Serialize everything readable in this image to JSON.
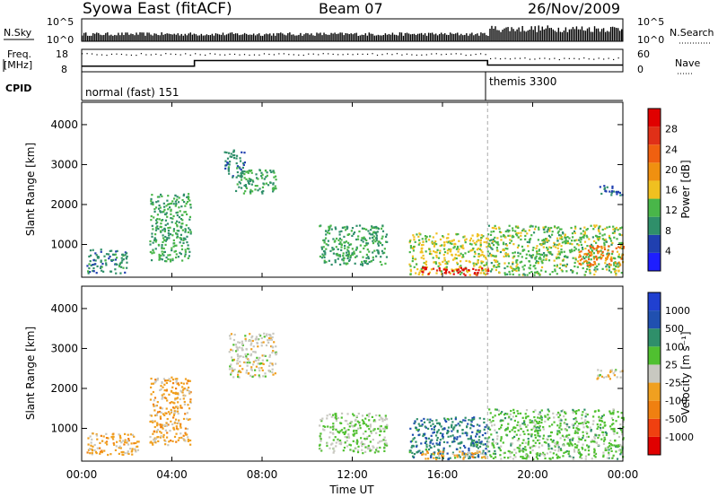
{
  "header": {
    "title": "Syowa East (fitACF)",
    "beam": "Beam 07",
    "date": "26/Nov/2009"
  },
  "top_panels": {
    "nsky_label": "N.Sky",
    "nsky_ticks": [
      "10^5",
      "10^0"
    ],
    "nsearch_label": "N.Search",
    "nsearch_ticks": [
      "10^5",
      "10^0"
    ],
    "freq_label_1": "Freq.",
    "freq_label_2": "[MHz]",
    "freq_ticks": [
      "18",
      "8"
    ],
    "nave_label": "Nave",
    "nave_ticks": [
      "60",
      "0"
    ],
    "cpid_label": "CPID",
    "cpid_segments": [
      {
        "label": "normal (fast) 151",
        "start_hour": 0,
        "end_hour": 18
      },
      {
        "label": "themis 3300",
        "start_hour": 18,
        "end_hour": 24
      }
    ],
    "freq_steps": [
      {
        "start_hour": 0,
        "end_hour": 5,
        "mhz": 10.5
      },
      {
        "start_hour": 5,
        "end_hour": 18,
        "mhz": 13.0
      },
      {
        "start_hour": 18,
        "end_hour": 24,
        "mhz": 11.0
      }
    ]
  },
  "colors": {
    "power_scale": [
      "#1e1eff",
      "#2040b0",
      "#2f8f6a",
      "#49b649",
      "#f0c020",
      "#f09010",
      "#f06010",
      "#e03018",
      "#e00000"
    ],
    "velocity_scale": [
      "#e00000",
      "#f04010",
      "#f08010",
      "#f0a020",
      "#c8c8c0",
      "#50c030",
      "#2f8f6a",
      "#2050b0",
      "#2040d0"
    ]
  },
  "chart_data": [
    {
      "type": "heatmap",
      "panel": "power",
      "ylabel": "Slant Range [km]",
      "yticks": [
        "4000",
        "3000",
        "2000",
        "1000"
      ],
      "ylim": [
        180,
        4560
      ],
      "xlim": [
        0,
        24
      ],
      "colorbar_label": "Power [dB]",
      "colorbar_ticks": [
        "28",
        "24",
        "20",
        "16",
        "12",
        "8",
        "4"
      ],
      "clim": [
        0,
        30
      ],
      "regions": [
        {
          "t0": 6.8,
          "t1": 8.6,
          "r0": 2300,
          "r1": 2900,
          "value": 10
        },
        {
          "t0": 6.3,
          "t1": 7.2,
          "r0": 2700,
          "r1": 3400,
          "value": 8
        },
        {
          "t0": 3.0,
          "t1": 4.8,
          "r0": 600,
          "r1": 2300,
          "value": 10
        },
        {
          "t0": 0.2,
          "t1": 2.0,
          "r0": 300,
          "r1": 900,
          "value": 8
        },
        {
          "t0": 10.5,
          "t1": 13.5,
          "r0": 500,
          "r1": 1500,
          "value": 10
        },
        {
          "t0": 14.5,
          "t1": 18.0,
          "r0": 250,
          "r1": 1300,
          "value": 14
        },
        {
          "t0": 15.0,
          "t1": 18.0,
          "r0": 250,
          "r1": 450,
          "value": 27
        },
        {
          "t0": 18.0,
          "t1": 24.0,
          "r0": 250,
          "r1": 1500,
          "value": 12
        },
        {
          "t0": 22.0,
          "t1": 24.0,
          "r0": 500,
          "r1": 1000,
          "value": 20
        },
        {
          "t0": 22.8,
          "t1": 24.0,
          "r0": 2250,
          "r1": 2500,
          "value": 6
        }
      ]
    },
    {
      "type": "heatmap",
      "panel": "velocity",
      "ylabel": "Slant Range [km]",
      "yticks": [
        "4000",
        "3000",
        "2000",
        "1000"
      ],
      "ylim": [
        180,
        4560
      ],
      "xlim": [
        0,
        24
      ],
      "xlabel": "Time UT",
      "xticks": [
        "00:00",
        "04:00",
        "08:00",
        "12:00",
        "16:00",
        "20:00",
        "00:00"
      ],
      "colorbar_label": "Velocity [m s⁻¹]",
      "colorbar_ticks": [
        "1000",
        "500",
        "100",
        "25",
        "-25",
        "-100",
        "-500",
        "-1000"
      ],
      "clim": [
        -1000,
        1000
      ],
      "regions": [
        {
          "t0": 6.5,
          "t1": 8.6,
          "r0": 2300,
          "r1": 3400,
          "value": 0
        },
        {
          "t0": 3.0,
          "t1": 4.8,
          "r0": 600,
          "r1": 2300,
          "value": -200
        },
        {
          "t0": 0.2,
          "t1": 2.5,
          "r0": 350,
          "r1": 900,
          "value": -200
        },
        {
          "t0": 10.5,
          "t1": 13.5,
          "r0": 400,
          "r1": 1400,
          "value": 120
        },
        {
          "t0": 14.5,
          "t1": 18.0,
          "r0": 250,
          "r1": 1300,
          "value": 500
        },
        {
          "t0": 15.0,
          "t1": 18.0,
          "r0": 250,
          "r1": 450,
          "value": -200
        },
        {
          "t0": 18.0,
          "t1": 24.0,
          "r0": 250,
          "r1": 1500,
          "value": 200
        },
        {
          "t0": 22.8,
          "t1": 24.0,
          "r0": 2250,
          "r1": 2500,
          "value": 0
        }
      ]
    }
  ]
}
